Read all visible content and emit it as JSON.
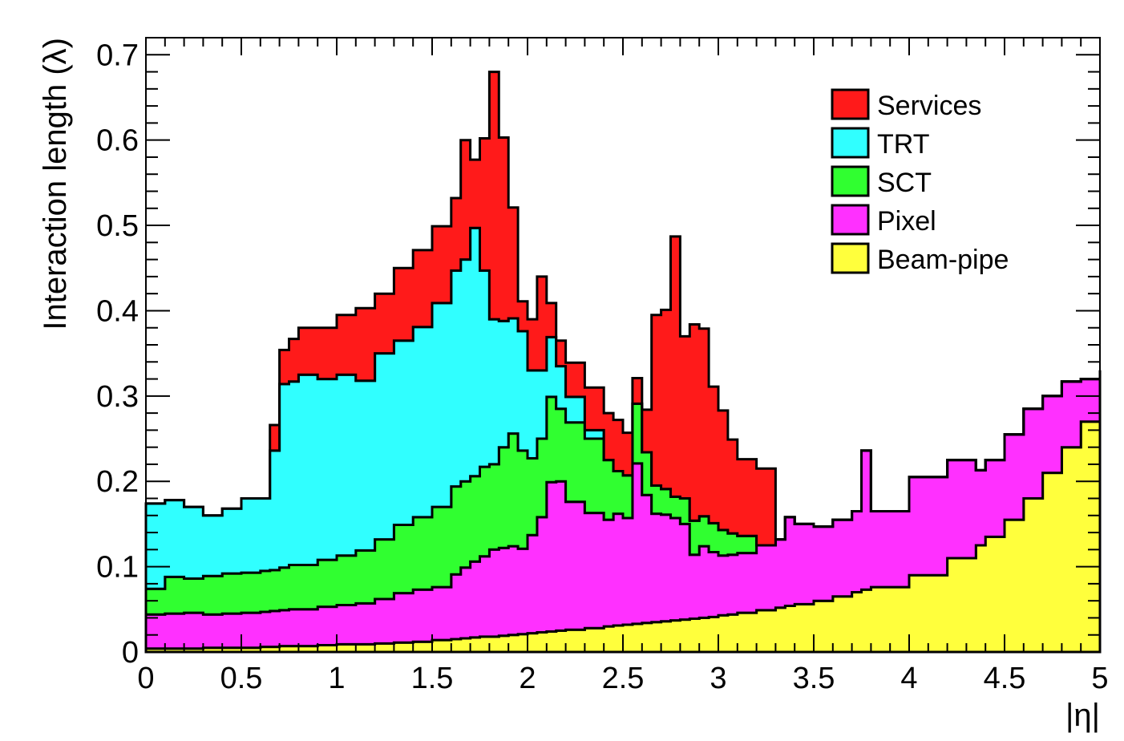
{
  "chart_data": {
    "type": "area",
    "stacked": true,
    "xlabel": "|η|",
    "ylabel": "Interaction length (λ)",
    "xlim": [
      0,
      5
    ],
    "ylim": [
      0,
      0.72
    ],
    "x_ticks": [
      "0",
      "0.5",
      "1",
      "1.5",
      "2",
      "2.5",
      "3",
      "3.5",
      "4",
      "4.5",
      "5"
    ],
    "y_ticks": [
      "0",
      "0.1",
      "0.2",
      "0.3",
      "0.4",
      "0.5",
      "0.6",
      "0.7"
    ],
    "grid": false,
    "legend_position": "top-right",
    "x": [
      0.0,
      0.1,
      0.2,
      0.3,
      0.4,
      0.5,
      0.6,
      0.65,
      0.7,
      0.75,
      0.8,
      0.9,
      1.0,
      1.1,
      1.2,
      1.3,
      1.4,
      1.5,
      1.6,
      1.65,
      1.7,
      1.75,
      1.8,
      1.85,
      1.9,
      1.95,
      2.0,
      2.05,
      2.1,
      2.15,
      2.2,
      2.3,
      2.4,
      2.45,
      2.5,
      2.55,
      2.6,
      2.65,
      2.7,
      2.75,
      2.8,
      2.85,
      2.9,
      2.95,
      3.0,
      3.05,
      3.1,
      3.2,
      3.3,
      3.35,
      3.4,
      3.5,
      3.6,
      3.7,
      3.75,
      3.8,
      4.0,
      4.2,
      4.35,
      4.4,
      4.5,
      4.6,
      4.7,
      4.8,
      4.9,
      5.0
    ],
    "series": [
      {
        "name": "Beam-pipe",
        "color": "#ffff3c",
        "values": [
          0.004,
          0.004,
          0.004,
          0.005,
          0.005,
          0.005,
          0.006,
          0.006,
          0.007,
          0.007,
          0.007,
          0.008,
          0.009,
          0.009,
          0.01,
          0.011,
          0.012,
          0.014,
          0.015,
          0.016,
          0.017,
          0.018,
          0.018,
          0.019,
          0.02,
          0.021,
          0.022,
          0.023,
          0.024,
          0.025,
          0.026,
          0.028,
          0.03,
          0.031,
          0.032,
          0.033,
          0.034,
          0.035,
          0.036,
          0.037,
          0.038,
          0.039,
          0.04,
          0.041,
          0.043,
          0.044,
          0.046,
          0.049,
          0.052,
          0.054,
          0.056,
          0.06,
          0.065,
          0.07,
          0.073,
          0.076,
          0.09,
          0.11,
          0.125,
          0.135,
          0.155,
          0.18,
          0.21,
          0.24,
          0.27,
          0.3
        ]
      },
      {
        "name": "Pixel",
        "color": "#ff30ff",
        "values": [
          0.04,
          0.041,
          0.042,
          0.039,
          0.04,
          0.041,
          0.041,
          0.042,
          0.042,
          0.043,
          0.043,
          0.045,
          0.046,
          0.048,
          0.052,
          0.058,
          0.061,
          0.062,
          0.076,
          0.083,
          0.089,
          0.094,
          0.102,
          0.103,
          0.104,
          0.1,
          0.115,
          0.135,
          0.175,
          0.175,
          0.15,
          0.135,
          0.125,
          0.131,
          0.125,
          0.188,
          0.15,
          0.127,
          0.125,
          0.12,
          0.112,
          0.075,
          0.084,
          0.076,
          0.07,
          0.07,
          0.07,
          0.076,
          0.08,
          0.104,
          0.094,
          0.087,
          0.09,
          0.095,
          0.163,
          0.089,
          0.115,
          0.115,
          0.088,
          0.09,
          0.1,
          0.105,
          0.09,
          0.077,
          0.05,
          0.03
        ]
      },
      {
        "name": "SCT",
        "color": "#30ff30",
        "values": [
          0.03,
          0.043,
          0.04,
          0.045,
          0.047,
          0.047,
          0.048,
          0.048,
          0.05,
          0.052,
          0.052,
          0.055,
          0.058,
          0.062,
          0.07,
          0.08,
          0.085,
          0.094,
          0.103,
          0.101,
          0.1,
          0.105,
          0.1,
          0.118,
          0.132,
          0.115,
          0.09,
          0.092,
          0.1,
          0.085,
          0.093,
          0.087,
          0.07,
          0.05,
          0.05,
          0.07,
          0.05,
          0.033,
          0.03,
          0.025,
          0.03,
          0.04,
          0.035,
          0.034,
          0.03,
          0.025,
          0.02,
          0.0,
          0.0,
          0.0,
          0.0,
          0.0,
          0.0,
          0.0,
          0.0,
          0.0,
          0.0,
          0.0,
          0.0,
          0.0,
          0.0,
          0.0,
          0.0,
          0.0,
          0.0,
          0.0
        ]
      },
      {
        "name": "TRT",
        "color": "#30ffff",
        "values": [
          0.1,
          0.09,
          0.084,
          0.071,
          0.076,
          0.087,
          0.085,
          0.14,
          0.215,
          0.215,
          0.223,
          0.212,
          0.212,
          0.199,
          0.218,
          0.216,
          0.223,
          0.239,
          0.253,
          0.26,
          0.291,
          0.23,
          0.17,
          0.148,
          0.135,
          0.14,
          0.103,
          0.08,
          0.07,
          0.05,
          0.03,
          0.01,
          0.0,
          0.0,
          0.0,
          0.0,
          0.0,
          0.0,
          0.0,
          0.0,
          0.0,
          0.0,
          0.0,
          0.0,
          0.0,
          0.0,
          0.0,
          0.0,
          0.0,
          0.0,
          0.0,
          0.0,
          0.0,
          0.0,
          0.0,
          0.0,
          0.0,
          0.0,
          0.0,
          0.0,
          0.0,
          0.0,
          0.0,
          0.0,
          0.0,
          0.0
        ]
      },
      {
        "name": "Services",
        "color": "#ff1a1a",
        "values": [
          0.0,
          0.0,
          0.0,
          0.0,
          0.0,
          0.0,
          0.0,
          0.03,
          0.04,
          0.05,
          0.055,
          0.06,
          0.07,
          0.085,
          0.07,
          0.085,
          0.09,
          0.09,
          0.085,
          0.14,
          0.08,
          0.155,
          0.29,
          0.215,
          0.13,
          0.035,
          0.06,
          0.11,
          0.04,
          0.03,
          0.04,
          0.05,
          0.055,
          0.06,
          0.05,
          0.03,
          0.05,
          0.2,
          0.21,
          0.305,
          0.19,
          0.23,
          0.22,
          0.16,
          0.14,
          0.11,
          0.09,
          0.09,
          0.0,
          0.0,
          0.0,
          0.0,
          0.0,
          0.0,
          0.0,
          0.0,
          0.0,
          0.0,
          0.0,
          0.0,
          0.0,
          0.0,
          0.0,
          0.0,
          0.0,
          0.0
        ]
      }
    ],
    "legend": [
      {
        "name": "Services",
        "color": "#ff1a1a"
      },
      {
        "name": "TRT",
        "color": "#30ffff"
      },
      {
        "name": "SCT",
        "color": "#30ff30"
      },
      {
        "name": "Pixel",
        "color": "#ff30ff"
      },
      {
        "name": "Beam-pipe",
        "color": "#ffff3c"
      }
    ]
  }
}
